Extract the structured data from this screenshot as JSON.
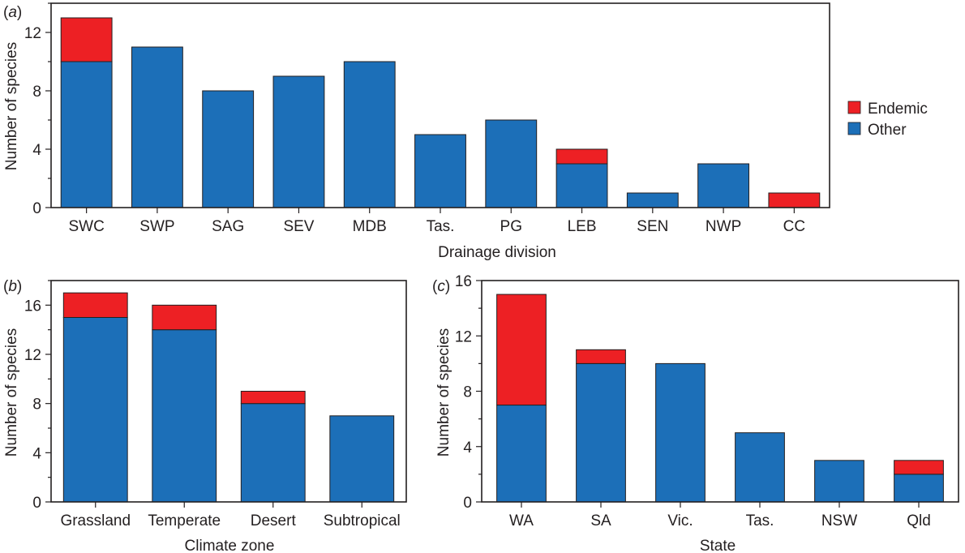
{
  "colors": {
    "endemic": "#ed2024",
    "other": "#1c6fb8",
    "axis": "#231f20"
  },
  "legend": {
    "placement": "right",
    "endemic_label": "Endemic",
    "other_label": "Other"
  },
  "chart_data": [
    {
      "id": "a",
      "type": "bar",
      "stacked": true,
      "panel_label": "a",
      "categories": [
        "SWC",
        "SWP",
        "SAG",
        "SEV",
        "MDB",
        "Tas.",
        "PG",
        "LEB",
        "SEN",
        "NWP",
        "CC"
      ],
      "series": [
        {
          "name": "Other",
          "values": [
            10,
            11,
            8,
            9,
            10,
            5,
            6,
            3,
            1,
            3,
            0
          ]
        },
        {
          "name": "Endemic",
          "values": [
            3,
            0,
            0,
            0,
            0,
            0,
            0,
            1,
            0,
            0,
            1
          ]
        }
      ],
      "xlabel": "Drainage division",
      "ylabel": "Number of species",
      "ylim": [
        0,
        14
      ],
      "yticks": [
        0,
        4,
        8,
        12
      ],
      "grid": false
    },
    {
      "id": "b",
      "type": "bar",
      "stacked": true,
      "panel_label": "b",
      "categories": [
        "Grassland",
        "Temperate",
        "Desert",
        "Subtropical"
      ],
      "series": [
        {
          "name": "Other",
          "values": [
            15,
            14,
            8,
            7
          ]
        },
        {
          "name": "Endemic",
          "values": [
            2,
            2,
            1,
            0
          ]
        }
      ],
      "xlabel": "Climate zone",
      "ylabel": "Number of species",
      "ylim": [
        0,
        18
      ],
      "yticks": [
        0,
        4,
        8,
        12,
        16
      ],
      "grid": false
    },
    {
      "id": "c",
      "type": "bar",
      "stacked": true,
      "panel_label": "c",
      "categories": [
        "WA",
        "SA",
        "Vic.",
        "Tas.",
        "NSW",
        "Qld"
      ],
      "series": [
        {
          "name": "Other",
          "values": [
            7,
            10,
            10,
            5,
            3,
            2
          ]
        },
        {
          "name": "Endemic",
          "values": [
            8,
            1,
            0,
            0,
            0,
            1
          ]
        }
      ],
      "xlabel": "State",
      "ylabel": "Number of species",
      "ylim": [
        0,
        16
      ],
      "yticks": [
        0,
        4,
        8,
        12,
        16
      ],
      "grid": false
    }
  ]
}
